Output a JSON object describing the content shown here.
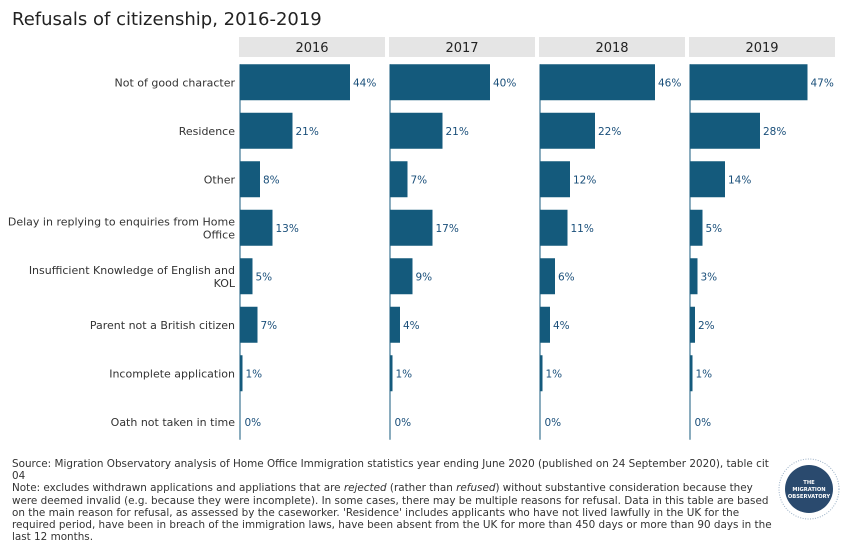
{
  "title": "Refusals of citizenship, 2016-2019",
  "chart_data": {
    "type": "bar",
    "orientation": "horizontal",
    "facets": [
      "2016",
      "2017",
      "2018",
      "2019"
    ],
    "categories": [
      "Not of good character",
      "Residence",
      "Other",
      "Delay in replying to enquiries from Home Office",
      "Insufficient Knowledge of English and KOL",
      "Parent not a British citizen",
      "Incomplete application",
      "Oath not taken in time"
    ],
    "category_lines": [
      [
        "Not of good character"
      ],
      [
        "Residence"
      ],
      [
        "Other"
      ],
      [
        "Delay in replying to enquiries from Home",
        "Office"
      ],
      [
        "Insufficient Knowledge of English and",
        "KOL"
      ],
      [
        "Parent not a British citizen"
      ],
      [
        "Incomplete application"
      ],
      [
        "Oath not taken in time"
      ]
    ],
    "series": [
      {
        "values": [
          44,
          21,
          8,
          13,
          5,
          7,
          1,
          0
        ]
      },
      {
        "values": [
          40,
          21,
          7,
          17,
          9,
          4,
          1,
          0
        ]
      },
      {
        "values": [
          46,
          22,
          12,
          11,
          6,
          4,
          1,
          0
        ]
      },
      {
        "values": [
          47,
          28,
          14,
          5,
          3,
          2,
          1,
          0
        ]
      }
    ],
    "value_suffix": "%",
    "xlim": [
      0,
      60
    ],
    "bar_color": "#145a7c",
    "header_color": "#e5e5e5",
    "grid": false
  },
  "footnote": {
    "source": "Source: Migration Observatory analysis of Home Office Immigration statistics year ending June 2020 (published on 24 September 2020), table cit 04",
    "note_before_rejected": "Note: excludes withdrawn applications and appliations that are ",
    "rejected": "rejected",
    "note_middle": " (rather than ",
    "refused": "refused",
    "note_after": ") without substantive consideration because they were deemed invalid (e.g. because they were incomplete). In some cases, there may be multiple reasons for refusal. Data in this table are based on the main reason for refusal, as assessed by the caseworker. 'Residence' includes applicants who have not lived lawfully in the UK for the required period, have been in breach of the immigration laws, have been absent from the UK for more than 450 days or more than 90 days in the last 12 months."
  },
  "logo": {
    "line1": "THE",
    "line2": "MIGRATION",
    "line3": "OBSERVATORY",
    "color": "#2a4a6e"
  }
}
